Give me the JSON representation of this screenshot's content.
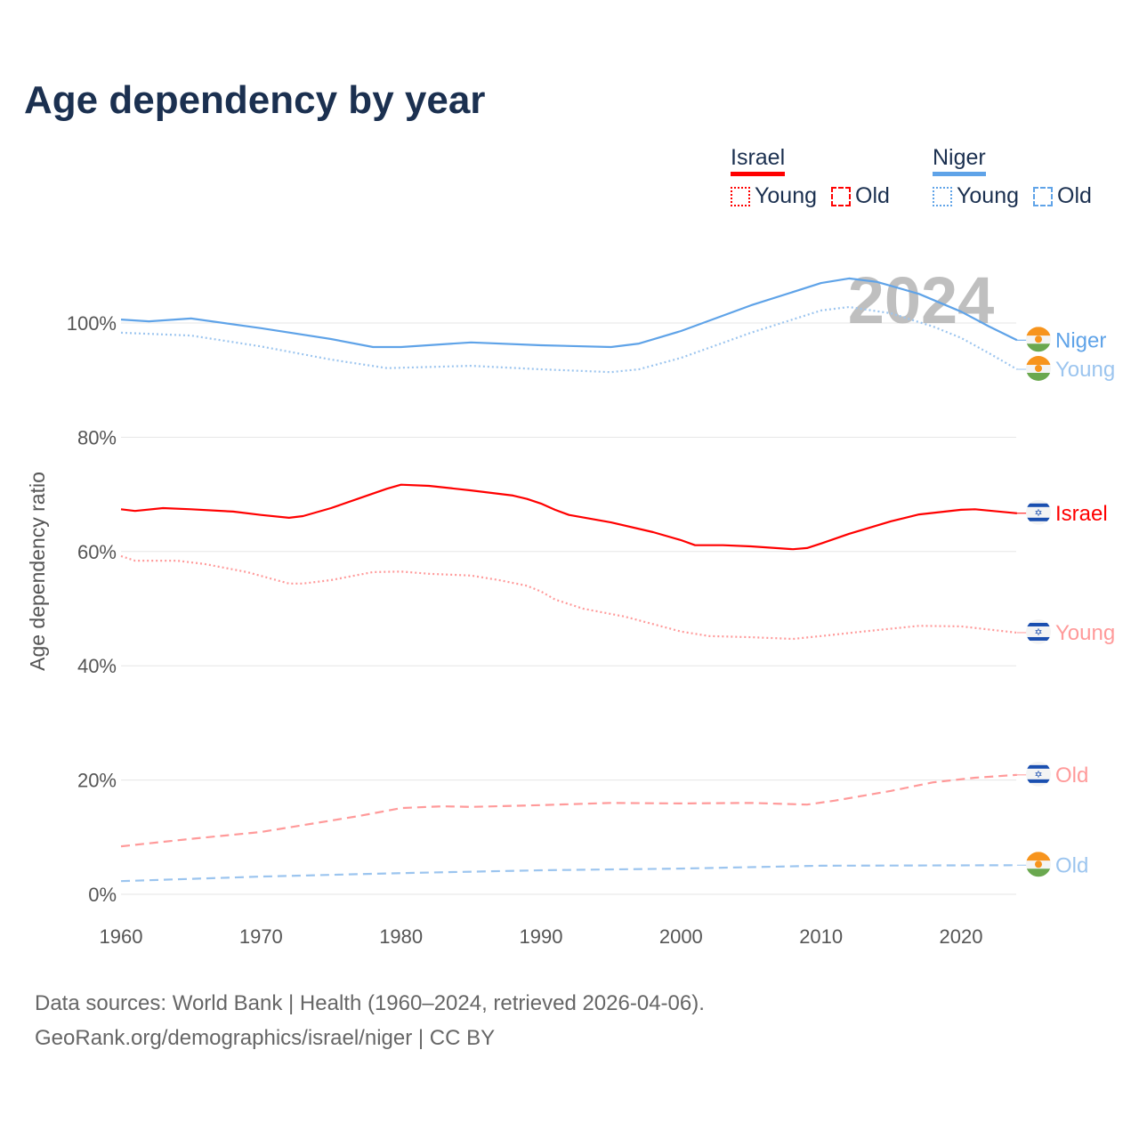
{
  "title": "Age dependency by year",
  "legend": {
    "groups": [
      {
        "country": "Israel",
        "color": "#ff0000",
        "items": [
          "Young",
          "Old"
        ]
      },
      {
        "country": "Niger",
        "color": "#5fa3e8",
        "items": [
          "Young",
          "Old"
        ]
      }
    ]
  },
  "source": {
    "line1": "Data sources: World Bank | Health (1960–2024, retrieved 2026-04-06).",
    "line2": "GeoRank.org/demographics/israel/niger | CC BY"
  },
  "chart_data": {
    "type": "line",
    "title": "Age dependency by year",
    "watermark_year": "2024",
    "xlabel": "",
    "ylabel": "Age dependency ratio",
    "xlim": [
      1960,
      2024
    ],
    "ylim": [
      0,
      110
    ],
    "x_ticks": [
      1960,
      1970,
      1980,
      1990,
      2000,
      2010,
      2020
    ],
    "y_ticks": [
      0,
      20,
      40,
      60,
      80,
      100
    ],
    "y_tick_labels": [
      "0%",
      "20%",
      "40%",
      "60%",
      "80%",
      "100%"
    ],
    "grid": true,
    "legend_position": "top-right",
    "series": [
      {
        "name": "Niger",
        "country": "Niger",
        "label": "Niger",
        "style": "solid",
        "color": "#5fa3e8",
        "x": [
          1960,
          1962,
          1965,
          1970,
          1975,
          1978,
          1980,
          1985,
          1990,
          1995,
          1997,
          2000,
          2005,
          2010,
          2012,
          2014,
          2017,
          2020,
          2022,
          2024
        ],
        "y": [
          100.6,
          100.3,
          100.8,
          99.1,
          97.2,
          95.8,
          95.8,
          96.6,
          96.1,
          95.8,
          96.4,
          98.6,
          103.1,
          107.0,
          107.8,
          107.2,
          105.1,
          102.0,
          99.4,
          97.0
        ]
      },
      {
        "name": "Niger Young",
        "country": "Niger",
        "label": "Young",
        "style": "dotted",
        "color": "#9cc5ef",
        "x": [
          1960,
          1965,
          1970,
          1975,
          1979,
          1985,
          1990,
          1995,
          1997,
          2000,
          2005,
          2010,
          2012,
          2015,
          2018,
          2020,
          2022,
          2024
        ],
        "y": [
          98.3,
          97.8,
          95.9,
          93.6,
          92.1,
          92.5,
          91.9,
          91.4,
          91.9,
          93.9,
          98.3,
          102.2,
          102.8,
          101.7,
          99.4,
          97.4,
          94.7,
          91.9
        ]
      },
      {
        "name": "Israel",
        "country": "Israel",
        "label": "Israel",
        "style": "solid",
        "color": "#ff0000",
        "x": [
          1960,
          1961,
          1963,
          1965,
          1968,
          1970,
          1972,
          1973,
          1975,
          1977,
          1979,
          1980,
          1982,
          1985,
          1988,
          1989,
          1990,
          1991,
          1992,
          1995,
          1998,
          2000,
          2001,
          2003,
          2005,
          2008,
          2009,
          2010,
          2012,
          2015,
          2017,
          2020,
          2021,
          2024
        ],
        "y": [
          67.4,
          67.1,
          67.6,
          67.4,
          67.0,
          66.4,
          65.9,
          66.2,
          67.6,
          69.3,
          71.0,
          71.7,
          71.5,
          70.7,
          69.8,
          69.2,
          68.4,
          67.3,
          66.4,
          65.1,
          63.4,
          62.0,
          61.1,
          61.1,
          60.9,
          60.4,
          60.6,
          61.4,
          63.1,
          65.3,
          66.5,
          67.3,
          67.4,
          66.7
        ]
      },
      {
        "name": "Israel Young",
        "country": "Israel",
        "label": "Young",
        "style": "dotted",
        "color": "#ff9a9a",
        "x": [
          1960,
          1961,
          1964,
          1966,
          1969,
          1972,
          1973,
          1975,
          1978,
          1980,
          1982,
          1985,
          1987,
          1989,
          1990,
          1991,
          1993,
          1996,
          2000,
          2002,
          2005,
          2008,
          2010,
          2013,
          2017,
          2020,
          2024
        ],
        "y": [
          59.2,
          58.4,
          58.4,
          57.8,
          56.4,
          54.4,
          54.4,
          55.0,
          56.4,
          56.5,
          56.1,
          55.8,
          55.0,
          54.0,
          53.0,
          51.6,
          50.0,
          48.6,
          46.0,
          45.2,
          45.0,
          44.7,
          45.2,
          46.0,
          47.0,
          46.9,
          45.8
        ]
      },
      {
        "name": "Israel Old",
        "country": "Israel",
        "label": "Old",
        "style": "dashed",
        "color": "#ff9a9a",
        "x": [
          1960,
          1965,
          1970,
          1973,
          1977,
          1980,
          1983,
          1985,
          1990,
          1995,
          2000,
          2005,
          2009,
          2011,
          2015,
          2018,
          2021,
          2024
        ],
        "y": [
          8.4,
          9.7,
          10.9,
          12.1,
          13.7,
          15.1,
          15.4,
          15.3,
          15.6,
          16.0,
          15.9,
          16.0,
          15.7,
          16.4,
          18.1,
          19.6,
          20.4,
          20.9
        ]
      },
      {
        "name": "Niger Old",
        "country": "Niger",
        "label": "Old",
        "style": "dashed",
        "color": "#9cc5ef",
        "x": [
          1960,
          1970,
          1980,
          1990,
          2000,
          2010,
          2024
        ],
        "y": [
          2.3,
          3.1,
          3.7,
          4.2,
          4.5,
          5.0,
          5.1
        ]
      }
    ]
  }
}
